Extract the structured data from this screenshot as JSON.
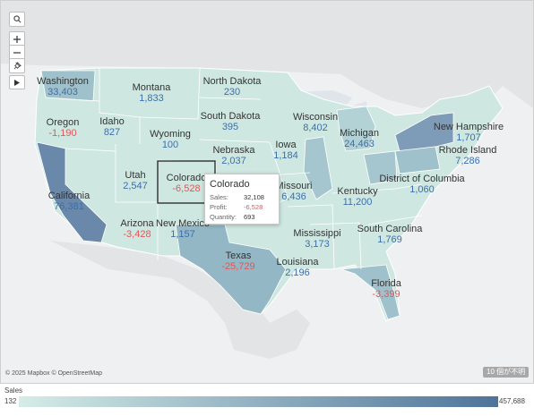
{
  "map": {
    "attribution": "© 2025 Mapbox © OpenStreetMap",
    "unknown_badge": "10 個が不明",
    "states": [
      {
        "name": "Washington",
        "value": "33,403",
        "negative": false
      },
      {
        "name": "Oregon",
        "value": "-1,190",
        "negative": true
      },
      {
        "name": "California",
        "value": "76,381",
        "negative": false
      },
      {
        "name": "Montana",
        "value": "1,833",
        "negative": false
      },
      {
        "name": "Idaho",
        "value": "827",
        "negative": false
      },
      {
        "name": "Wyoming",
        "value": "100",
        "negative": false
      },
      {
        "name": "Utah",
        "value": "2,547",
        "negative": false
      },
      {
        "name": "Colorado",
        "value": "-6,528",
        "negative": true
      },
      {
        "name": "Arizona",
        "value": "-3,428",
        "negative": true
      },
      {
        "name": "New Mexico",
        "value": "1,157",
        "negative": false
      },
      {
        "name": "North Dakota",
        "value": "230",
        "negative": false
      },
      {
        "name": "South Dakota",
        "value": "395",
        "negative": false
      },
      {
        "name": "Nebraska",
        "value": "2,037",
        "negative": false
      },
      {
        "name": "Texas",
        "value": "-25,729",
        "negative": true
      },
      {
        "name": "Iowa",
        "value": "1,184",
        "negative": false
      },
      {
        "name": "Missouri",
        "value": "6,436",
        "negative": false
      },
      {
        "name": "Wisconsin",
        "value": "8,402",
        "negative": false
      },
      {
        "name": "Michigan",
        "value": "24,463",
        "negative": false
      },
      {
        "name": "Kentucky",
        "value": "11,200",
        "negative": false
      },
      {
        "name": "Mississippi",
        "value": "3,173",
        "negative": false
      },
      {
        "name": "Louisiana",
        "value": "2,196",
        "negative": false
      },
      {
        "name": "South Carolina",
        "value": "1,769",
        "negative": false
      },
      {
        "name": "Florida",
        "value": "-3,399",
        "negative": true
      },
      {
        "name": "District of Columbia",
        "value": "1,060",
        "negative": false
      },
      {
        "name": "New Hampshire",
        "value": "1,707",
        "negative": false
      },
      {
        "name": "Rhode Island",
        "value": "7,286",
        "negative": false
      }
    ]
  },
  "tooltip": {
    "title": "Colorado",
    "sales_label": "Sales:",
    "sales_value": "32,108",
    "profit_label": "Profit:",
    "profit_value": "-6,528",
    "quantity_label": "Quantity:",
    "quantity_value": "693"
  },
  "legend": {
    "title": "Sales",
    "min": "132",
    "max": "457,688",
    "color_low": "#d5ece7",
    "color_high": "#4e7499"
  },
  "colors": {
    "positive_label": "#3d6fa8",
    "negative_label": "#e15759",
    "state_light": "#cfe7e1",
    "state_dark": "#6a88a9",
    "ocean": "#eef0f1"
  },
  "icons": [
    "search-icon",
    "zoom-in-icon",
    "zoom-out-icon",
    "pin-icon",
    "play-icon"
  ]
}
